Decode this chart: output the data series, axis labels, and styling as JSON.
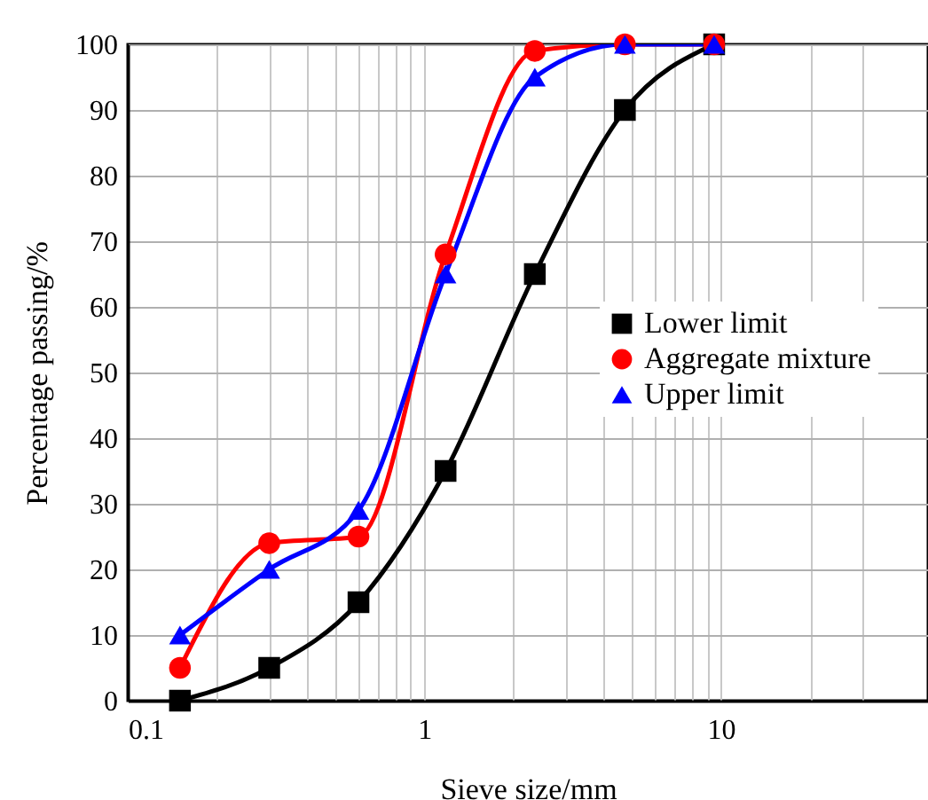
{
  "chart_data": {
    "type": "line",
    "xlabel": "Sieve size/mm",
    "ylabel": "Percentage passing/%",
    "x": [
      0.15,
      0.3,
      0.6,
      1.18,
      2.36,
      4.75,
      9.5
    ],
    "series": [
      {
        "name": "Lower limit",
        "color": "#000000",
        "marker": "square",
        "values": [
          0,
          5,
          15,
          35,
          65,
          90,
          100
        ]
      },
      {
        "name": "Aggregate mixture",
        "color": "#ff0000",
        "marker": "circle",
        "values": [
          5,
          24,
          25,
          68,
          99,
          100,
          100
        ]
      },
      {
        "name": "Upper limit",
        "color": "#0000ff",
        "marker": "triangle",
        "values": [
          10,
          20,
          29,
          65,
          95,
          100,
          100
        ]
      }
    ],
    "log": "x",
    "xlim": [
      0.1,
      50
    ],
    "xticks": [
      0.1,
      {
        "value": 0.2,
        "label": null
      },
      {
        "value": 0.3,
        "label": null
      },
      {
        "value": 0.4,
        "label": null
      },
      {
        "value": 0.5,
        "label": null
      },
      {
        "value": 0.6,
        "label": null
      },
      {
        "value": 0.7,
        "label": null
      },
      {
        "value": 0.8,
        "label": null
      },
      {
        "value": 0.9,
        "label": null
      },
      1,
      {
        "value": 2,
        "label": null
      },
      {
        "value": 3,
        "label": null
      },
      {
        "value": 4,
        "label": null
      },
      {
        "value": 5,
        "label": null
      },
      {
        "value": 6,
        "label": null
      },
      {
        "value": 7,
        "label": null
      },
      {
        "value": 8,
        "label": null
      },
      {
        "value": 9,
        "label": null
      },
      10,
      {
        "value": 20,
        "label": null
      },
      {
        "value": 30,
        "label": null
      }
    ],
    "ylim": [
      0,
      100
    ],
    "yticks": [
      0,
      10,
      20,
      30,
      40,
      50,
      60,
      70,
      80,
      90,
      100
    ],
    "grid": true,
    "legend": "right",
    "line_style": "solid"
  }
}
